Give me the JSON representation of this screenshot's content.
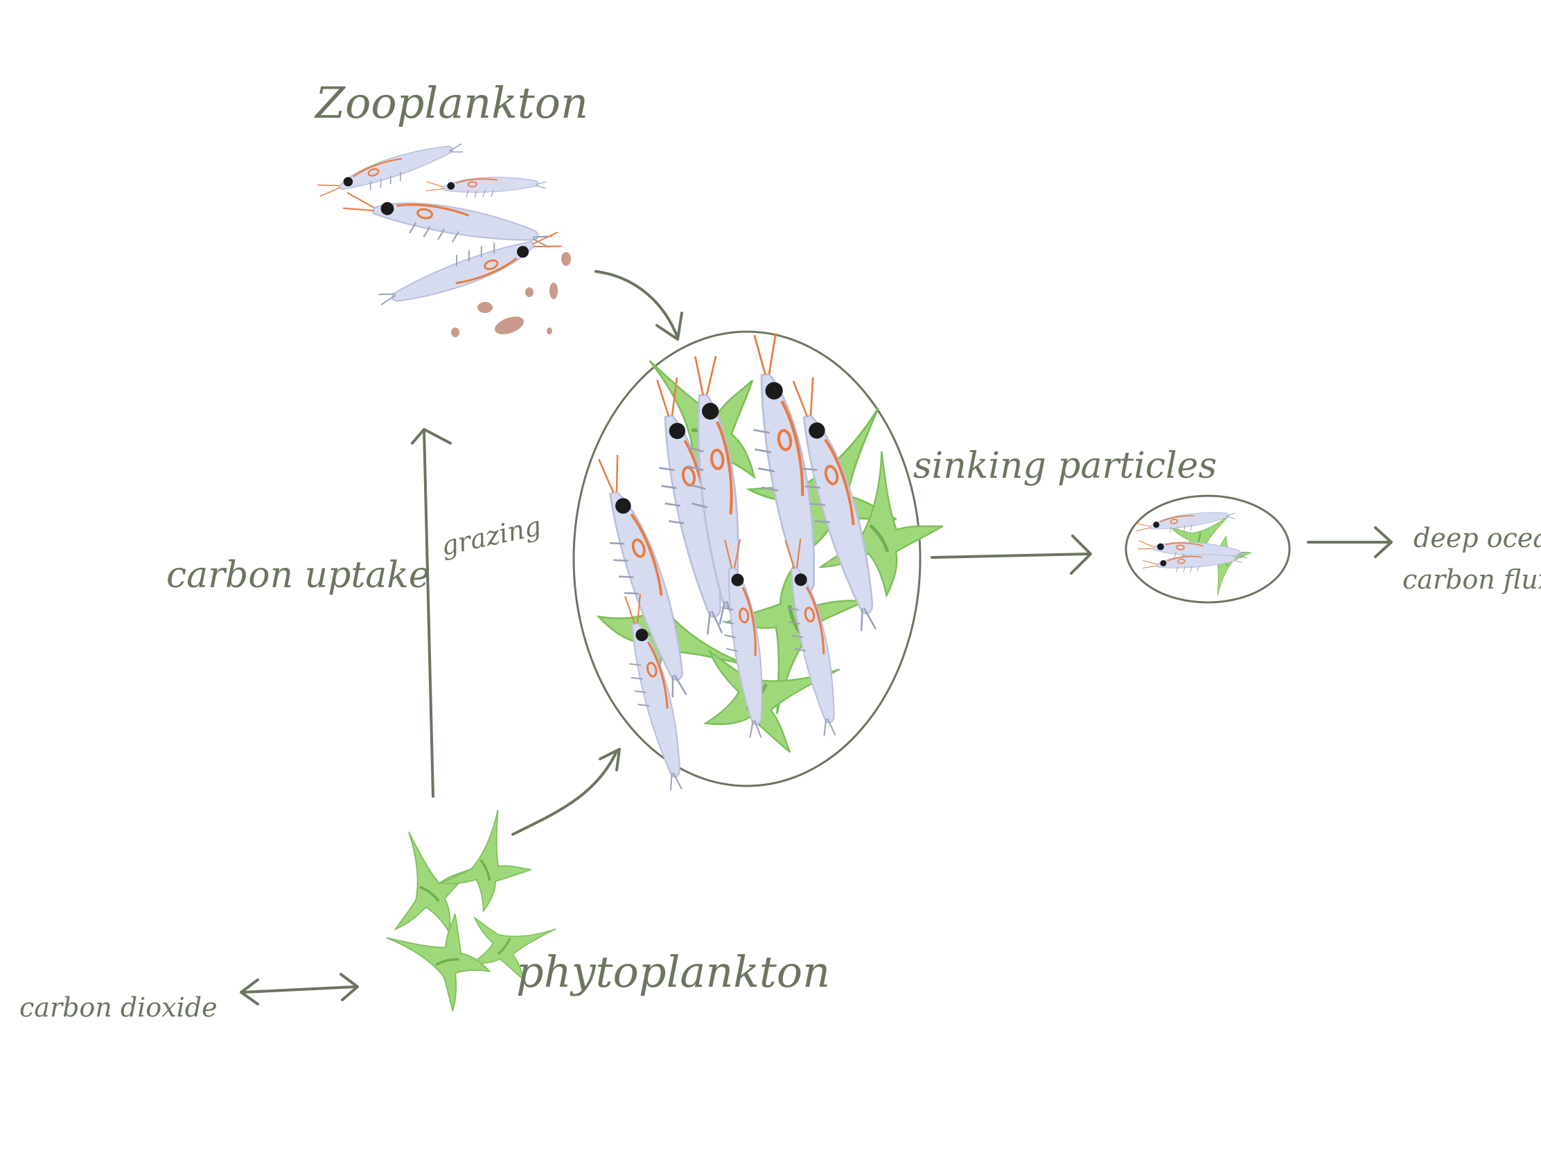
{
  "labels": {
    "zooplankton": "Zooplankton",
    "phytoplankton": "phytoplankton",
    "carbon_uptake": "carbon uptake",
    "grazing": "grazing",
    "sinking_particles": "sinking particles",
    "carbon_dioxide": "carbon dioxide",
    "deep_ocean_line1": "deep ocean",
    "deep_ocean_line2": "carbon flux"
  },
  "colors": {
    "ink": "#6b7560",
    "zoo_body": "#d7dbef",
    "zoo_accent": "#ea7a3f",
    "zoo_eye": "#1b1b1b",
    "phyto": "#9fd87a",
    "phyto_dark": "#6fae52",
    "pellet": "#c99a8b"
  },
  "icons": {
    "zooplankton": "krill-icon",
    "phytoplankton": "diatom-icon",
    "fecal_pellet": "pellet-icon"
  }
}
